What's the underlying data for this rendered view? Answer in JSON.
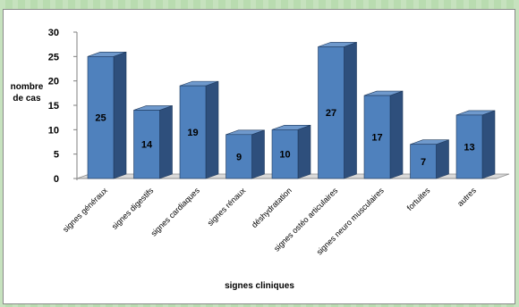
{
  "chart_data": {
    "type": "bar",
    "title": "",
    "xlabel": "signes cliniques",
    "ylabel": [
      "nombre",
      "de cas"
    ],
    "ylim": [
      0,
      30
    ],
    "yticks": [
      0,
      5,
      10,
      15,
      20,
      25,
      30
    ],
    "grid": false,
    "legend": "none",
    "categories": [
      "signes généraux",
      "signes digestifs",
      "signes cardiaques",
      "signes rénaux",
      "déshydratation",
      "signes ostéo articulaires",
      "signes neuro musculaires",
      "fortuites",
      "autres"
    ],
    "values": [
      25,
      14,
      19,
      9,
      10,
      27,
      17,
      7,
      13
    ],
    "colors": {
      "bar_front": "#4f81bd",
      "bar_side": "#2e4f7c",
      "bar_top": "#6f99cc",
      "floor": "#d9d9d9"
    }
  }
}
